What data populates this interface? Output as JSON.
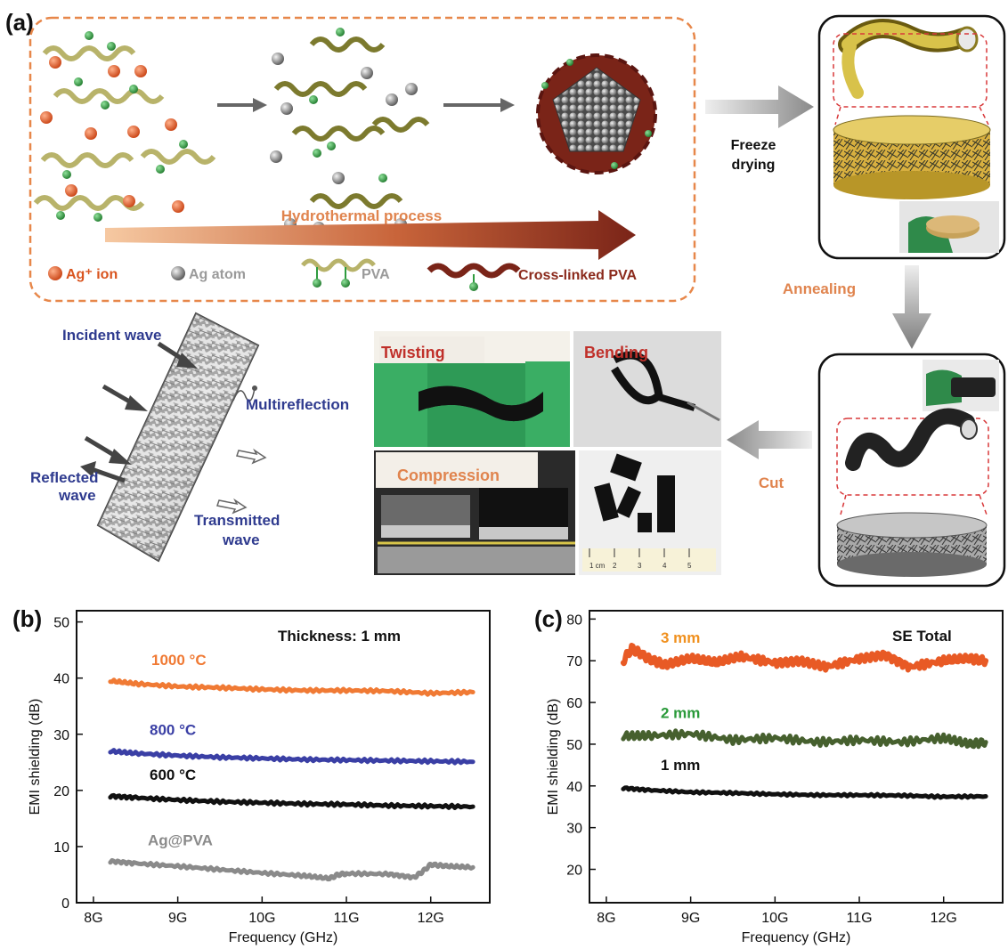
{
  "panel_a": {
    "label": "(a)",
    "hydrothermal": "Hydrothermal process",
    "legend": {
      "ag_ion": "Ag⁺ ion",
      "ag_atom": "Ag atom",
      "pva": "PVA",
      "crosslinked": "Cross-linked PVA"
    },
    "freeze": [
      "Freeze",
      "drying"
    ],
    "annealing": "Annealing",
    "cut": "Cut",
    "photos": {
      "twisting": "Twisting",
      "bending": "Bending",
      "compression": "Compression"
    },
    "wave": {
      "incident": "Incident wave",
      "multireflection": "Multireflection",
      "reflected": [
        "Reflected",
        "wave"
      ],
      "transmitted": [
        "Transmitted",
        "wave"
      ]
    },
    "ruler_ticks": [
      "1 cm",
      "2",
      "3",
      "4",
      "5"
    ],
    "colors": {
      "orange": "#e0844e",
      "brown": "#8b2a1c",
      "blue": "#2f3b8f",
      "red": "#c0302a",
      "ag_ion": "#d9541e",
      "pva_green": "#2f9c3f"
    }
  },
  "chart_data": [
    {
      "panel": "(b)",
      "type": "line",
      "title": "",
      "annotation": "Thickness: 1 mm",
      "xlabel": "Frequency (GHz)",
      "ylabel": "EMI shielding (dB)",
      "xlim": [
        7.8,
        12.7
      ],
      "ylim": [
        0,
        52
      ],
      "xticks": [
        8,
        9,
        10,
        11,
        12
      ],
      "xtick_labels": [
        "8G",
        "9G",
        "10G",
        "11G",
        "12G"
      ],
      "yticks": [
        0,
        10,
        20,
        30,
        40,
        50
      ],
      "ytick_labels": [
        "0",
        "10",
        "20",
        "30",
        "40",
        "50"
      ],
      "series": [
        {
          "name": "1000 °C",
          "color": "#f07a34",
          "x": [
            8.2,
            8.5,
            9.0,
            9.5,
            10.0,
            10.5,
            11.0,
            11.5,
            12.0,
            12.5
          ],
          "y": [
            39.5,
            39.0,
            38.5,
            38.3,
            38.0,
            37.8,
            37.8,
            37.7,
            37.3,
            37.5
          ]
        },
        {
          "name": "800 °C",
          "color": "#3a3fa5",
          "x": [
            8.2,
            8.5,
            9.0,
            9.5,
            10.0,
            10.5,
            11.0,
            11.5,
            12.0,
            12.5
          ],
          "y": [
            27.0,
            26.6,
            26.2,
            25.9,
            25.7,
            25.5,
            25.4,
            25.3,
            25.2,
            25.1
          ]
        },
        {
          "name": "600 °C",
          "color": "#111111",
          "x": [
            8.2,
            8.5,
            9.0,
            9.5,
            10.0,
            10.5,
            11.0,
            11.5,
            12.0,
            12.5
          ],
          "y": [
            19.0,
            18.7,
            18.3,
            18.0,
            17.8,
            17.6,
            17.5,
            17.3,
            17.2,
            17.1
          ]
        },
        {
          "name": "Ag@PVA",
          "color": "#8a8a8a",
          "x": [
            8.2,
            8.5,
            9.0,
            9.5,
            10.0,
            10.5,
            10.8,
            10.9,
            11.0,
            11.5,
            11.8,
            11.9,
            12.0,
            12.2,
            12.5
          ],
          "y": [
            7.4,
            7.0,
            6.5,
            5.9,
            5.3,
            4.8,
            4.3,
            5.0,
            5.2,
            5.1,
            4.5,
            5.5,
            6.8,
            6.5,
            6.3
          ]
        }
      ]
    },
    {
      "panel": "(c)",
      "type": "line",
      "title": "",
      "annotation": "SE Total",
      "xlabel": "Frequency (GHz)",
      "ylabel": "EMI shielding (dB)",
      "xlim": [
        7.8,
        12.7
      ],
      "ylim": [
        12,
        82
      ],
      "xticks": [
        8,
        9,
        10,
        11,
        12
      ],
      "xtick_labels": [
        "8G",
        "9G",
        "10G",
        "11G",
        "12G"
      ],
      "yticks": [
        20,
        30,
        40,
        50,
        60,
        70,
        80
      ],
      "ytick_labels": [
        "20",
        "30",
        "40",
        "50",
        "60",
        "70",
        "80"
      ],
      "series": [
        {
          "name": "3 mm",
          "color": "#e85a25",
          "label_color": "#f0901e",
          "x": [
            8.2,
            8.3,
            8.5,
            8.7,
            9.0,
            9.3,
            9.6,
            10.0,
            10.3,
            10.6,
            11.0,
            11.3,
            11.6,
            12.0,
            12.3,
            12.5
          ],
          "y": [
            70.0,
            73.0,
            70.5,
            69.0,
            70.5,
            69.5,
            71.0,
            69.5,
            70.0,
            68.5,
            70.5,
            71.5,
            68.5,
            70.0,
            70.5,
            70.0
          ]
        },
        {
          "name": "2 mm",
          "color": "#46602e",
          "label_color": "#2a9a3a",
          "x": [
            8.2,
            8.5,
            9.0,
            9.5,
            10.0,
            10.5,
            11.0,
            11.5,
            12.0,
            12.3,
            12.5
          ],
          "y": [
            52.0,
            52.0,
            52.5,
            51.0,
            51.5,
            50.5,
            51.0,
            50.5,
            51.5,
            50.0,
            50.5
          ]
        },
        {
          "name": "1 mm",
          "color": "#111111",
          "label_color": "#111111",
          "x": [
            8.2,
            8.5,
            9.0,
            9.5,
            10.0,
            10.5,
            11.0,
            11.5,
            12.0,
            12.5
          ],
          "y": [
            39.5,
            39.0,
            38.5,
            38.3,
            38.0,
            37.8,
            37.8,
            37.7,
            37.4,
            37.5
          ]
        }
      ]
    }
  ]
}
